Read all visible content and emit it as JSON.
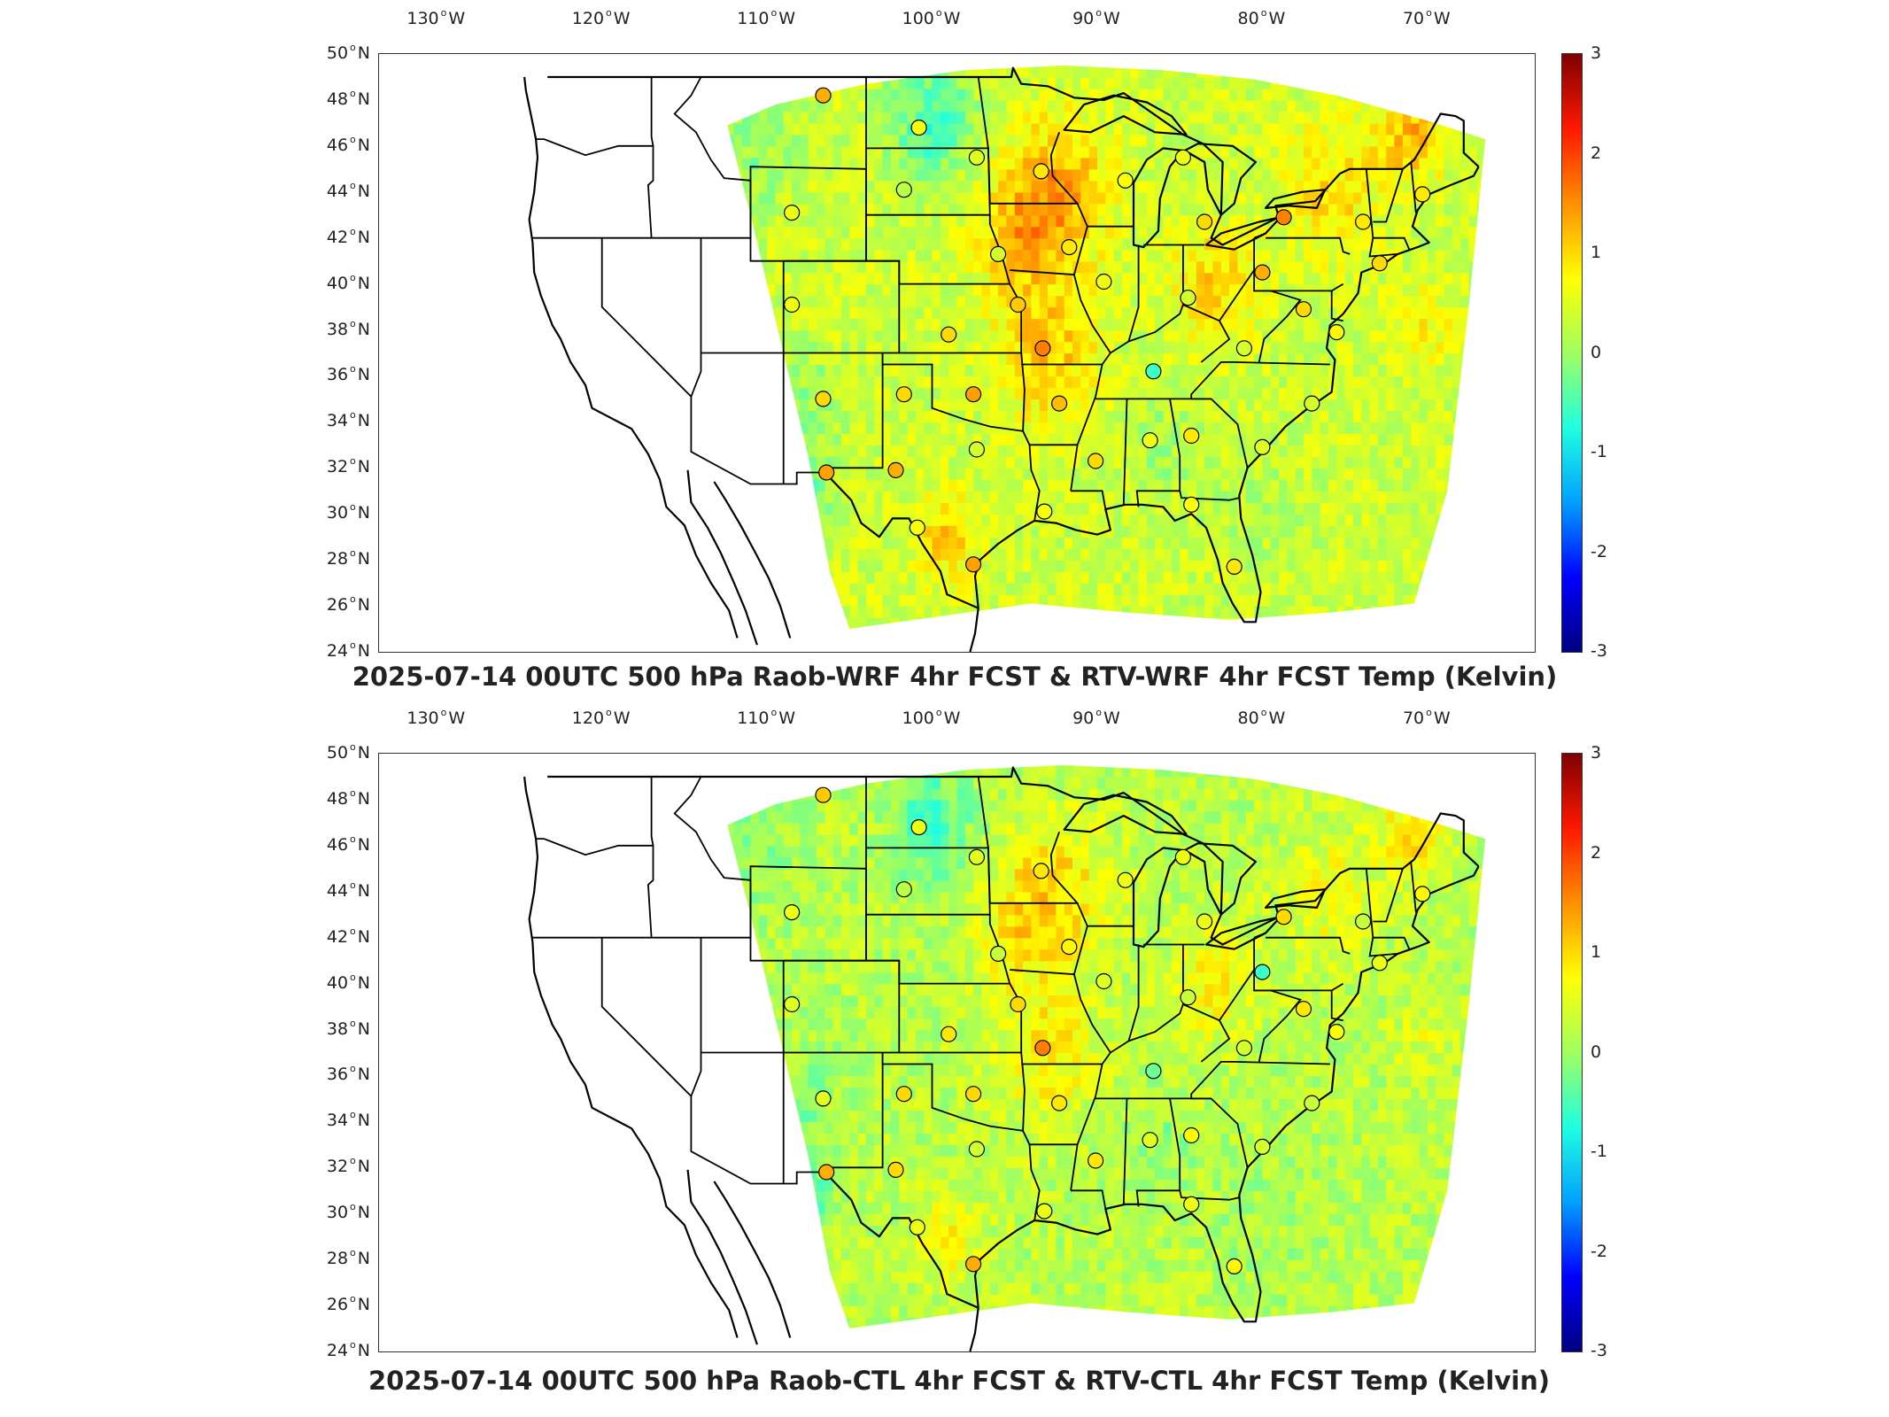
{
  "colorbar": {
    "ticks": [
      "3",
      "2",
      "1",
      "0",
      "-1",
      "-2",
      "-3"
    ],
    "range": [
      -3,
      3
    ],
    "colors": [
      "#00007f",
      "#0000ff",
      "#00a0ff",
      "#20ffe0",
      "#a0ff60",
      "#ffff00",
      "#ff9000",
      "#ff1800",
      "#7f0000"
    ]
  },
  "axes": {
    "lon_ticks": [
      {
        "num": "130",
        "hem": "W"
      },
      {
        "num": "120",
        "hem": "W"
      },
      {
        "num": "110",
        "hem": "W"
      },
      {
        "num": "100",
        "hem": "W"
      },
      {
        "num": "90",
        "hem": "W"
      },
      {
        "num": "80",
        "hem": "W"
      },
      {
        "num": "70",
        "hem": "W"
      }
    ],
    "lat_ticks": [
      {
        "num": "50",
        "hem": "N"
      },
      {
        "num": "48",
        "hem": "N"
      },
      {
        "num": "46",
        "hem": "N"
      },
      {
        "num": "44",
        "hem": "N"
      },
      {
        "num": "42",
        "hem": "N"
      },
      {
        "num": "40",
        "hem": "N"
      },
      {
        "num": "38",
        "hem": "N"
      },
      {
        "num": "36",
        "hem": "N"
      },
      {
        "num": "34",
        "hem": "N"
      },
      {
        "num": "32",
        "hem": "N"
      },
      {
        "num": "30",
        "hem": "N"
      },
      {
        "num": "28",
        "hem": "N"
      },
      {
        "num": "26",
        "hem": "N"
      },
      {
        "num": "24",
        "hem": "N"
      }
    ]
  },
  "panels": [
    {
      "title": "2025-07-14 00UTC 500 hPa Raob-WRF 4hr FCST & RTV-WRF 4hr FCST Temp (Kelvin)",
      "stations": [
        {
          "lon": -106.6,
          "lat": 48.2,
          "v": 1.3
        },
        {
          "lon": -100.8,
          "lat": 46.8,
          "v": 0.7
        },
        {
          "lon": -97.3,
          "lat": 45.5,
          "v": 0.5
        },
        {
          "lon": -93.4,
          "lat": 44.9,
          "v": 0.9
        },
        {
          "lon": -101.7,
          "lat": 44.1,
          "v": 0.2
        },
        {
          "lon": -108.5,
          "lat": 43.1,
          "v": 0.6
        },
        {
          "lon": -96.0,
          "lat": 41.3,
          "v": 0.4
        },
        {
          "lon": -91.7,
          "lat": 41.6,
          "v": 0.9
        },
        {
          "lon": -108.5,
          "lat": 39.1,
          "v": 0.6
        },
        {
          "lon": -99.0,
          "lat": 37.8,
          "v": 1.0
        },
        {
          "lon": -94.8,
          "lat": 39.1,
          "v": 1.1
        },
        {
          "lon": -93.3,
          "lat": 37.2,
          "v": 1.6
        },
        {
          "lon": -89.6,
          "lat": 40.1,
          "v": 0.6
        },
        {
          "lon": -86.6,
          "lat": 36.2,
          "v": -0.6
        },
        {
          "lon": -84.5,
          "lat": 39.4,
          "v": 0.4
        },
        {
          "lon": -81.1,
          "lat": 37.2,
          "v": 0.4
        },
        {
          "lon": -80.0,
          "lat": 40.5,
          "v": 1.3
        },
        {
          "lon": -83.5,
          "lat": 42.7,
          "v": 1.0
        },
        {
          "lon": -84.8,
          "lat": 45.5,
          "v": 0.6
        },
        {
          "lon": -88.3,
          "lat": 44.5,
          "v": 0.7
        },
        {
          "lon": -78.7,
          "lat": 42.9,
          "v": 1.6
        },
        {
          "lon": -73.9,
          "lat": 42.7,
          "v": 0.9
        },
        {
          "lon": -70.3,
          "lat": 43.9,
          "v": 0.9
        },
        {
          "lon": -72.9,
          "lat": 40.9,
          "v": 1.0
        },
        {
          "lon": -75.5,
          "lat": 37.9,
          "v": 0.8
        },
        {
          "lon": -77.5,
          "lat": 38.9,
          "v": 1.0
        },
        {
          "lon": -77.0,
          "lat": 34.8,
          "v": 0.4
        },
        {
          "lon": -80.0,
          "lat": 32.9,
          "v": 0.5
        },
        {
          "lon": -84.3,
          "lat": 30.4,
          "v": 0.7
        },
        {
          "lon": -86.8,
          "lat": 33.2,
          "v": 0.6
        },
        {
          "lon": -84.3,
          "lat": 33.4,
          "v": 0.9
        },
        {
          "lon": -90.1,
          "lat": 32.3,
          "v": 1.0
        },
        {
          "lon": -92.3,
          "lat": 34.8,
          "v": 1.2
        },
        {
          "lon": -97.5,
          "lat": 35.2,
          "v": 1.4
        },
        {
          "lon": -101.7,
          "lat": 35.2,
          "v": 1.0
        },
        {
          "lon": -106.6,
          "lat": 35.0,
          "v": 1.0
        },
        {
          "lon": -97.3,
          "lat": 32.8,
          "v": 0.4
        },
        {
          "lon": -102.2,
          "lat": 31.9,
          "v": 1.3
        },
        {
          "lon": -106.4,
          "lat": 31.8,
          "v": 1.4
        },
        {
          "lon": -100.9,
          "lat": 29.4,
          "v": 0.7
        },
        {
          "lon": -97.5,
          "lat": 27.8,
          "v": 1.4
        },
        {
          "lon": -93.2,
          "lat": 30.1,
          "v": 0.7
        },
        {
          "lon": -81.7,
          "lat": 27.7,
          "v": 0.9
        }
      ]
    },
    {
      "title": "2025-07-14 00UTC 500 hPa Raob-CTL 4hr FCST & RTV-CTL 4hr FCST Temp (Kelvin)",
      "stations": [
        {
          "lon": -106.6,
          "lat": 48.2,
          "v": 1.1
        },
        {
          "lon": -100.8,
          "lat": 46.8,
          "v": 0.6
        },
        {
          "lon": -97.3,
          "lat": 45.5,
          "v": 0.5
        },
        {
          "lon": -93.4,
          "lat": 44.9,
          "v": 0.9
        },
        {
          "lon": -101.7,
          "lat": 44.1,
          "v": 0.2
        },
        {
          "lon": -108.5,
          "lat": 43.1,
          "v": 0.6
        },
        {
          "lon": -96.0,
          "lat": 41.3,
          "v": 0.3
        },
        {
          "lon": -91.7,
          "lat": 41.6,
          "v": 0.8
        },
        {
          "lon": -108.5,
          "lat": 39.1,
          "v": 0.5
        },
        {
          "lon": -99.0,
          "lat": 37.8,
          "v": 0.9
        },
        {
          "lon": -94.8,
          "lat": 39.1,
          "v": 1.0
        },
        {
          "lon": -93.3,
          "lat": 37.2,
          "v": 1.6
        },
        {
          "lon": -89.6,
          "lat": 40.1,
          "v": 0.5
        },
        {
          "lon": -86.6,
          "lat": 36.2,
          "v": -0.3
        },
        {
          "lon": -84.5,
          "lat": 39.4,
          "v": 0.3
        },
        {
          "lon": -81.1,
          "lat": 37.2,
          "v": 0.4
        },
        {
          "lon": -80.0,
          "lat": 40.5,
          "v": -0.6
        },
        {
          "lon": -83.5,
          "lat": 42.7,
          "v": 0.6
        },
        {
          "lon": -84.8,
          "lat": 45.5,
          "v": 0.6
        },
        {
          "lon": -88.3,
          "lat": 44.5,
          "v": 0.6
        },
        {
          "lon": -78.7,
          "lat": 42.9,
          "v": 1.0
        },
        {
          "lon": -73.9,
          "lat": 42.7,
          "v": 0.3
        },
        {
          "lon": -70.3,
          "lat": 43.9,
          "v": 0.8
        },
        {
          "lon": -72.9,
          "lat": 40.9,
          "v": 0.6
        },
        {
          "lon": -75.5,
          "lat": 37.9,
          "v": 0.7
        },
        {
          "lon": -77.5,
          "lat": 38.9,
          "v": 0.9
        },
        {
          "lon": -77.0,
          "lat": 34.8,
          "v": 0.3
        },
        {
          "lon": -80.0,
          "lat": 32.9,
          "v": 0.4
        },
        {
          "lon": -84.3,
          "lat": 30.4,
          "v": 0.6
        },
        {
          "lon": -86.8,
          "lat": 33.2,
          "v": 0.5
        },
        {
          "lon": -84.3,
          "lat": 33.4,
          "v": 0.8
        },
        {
          "lon": -90.1,
          "lat": 32.3,
          "v": 0.9
        },
        {
          "lon": -92.3,
          "lat": 34.8,
          "v": 0.9
        },
        {
          "lon": -97.5,
          "lat": 35.2,
          "v": 1.0
        },
        {
          "lon": -101.7,
          "lat": 35.2,
          "v": 1.0
        },
        {
          "lon": -106.6,
          "lat": 35.0,
          "v": 0.5
        },
        {
          "lon": -97.3,
          "lat": 32.8,
          "v": 0.4
        },
        {
          "lon": -102.2,
          "lat": 31.9,
          "v": 1.0
        },
        {
          "lon": -106.4,
          "lat": 31.8,
          "v": 1.3
        },
        {
          "lon": -100.9,
          "lat": 29.4,
          "v": 0.6
        },
        {
          "lon": -97.5,
          "lat": 27.8,
          "v": 1.3
        },
        {
          "lon": -93.2,
          "lat": 30.1,
          "v": 0.6
        },
        {
          "lon": -81.7,
          "lat": 27.7,
          "v": 0.8
        }
      ]
    }
  ]
}
